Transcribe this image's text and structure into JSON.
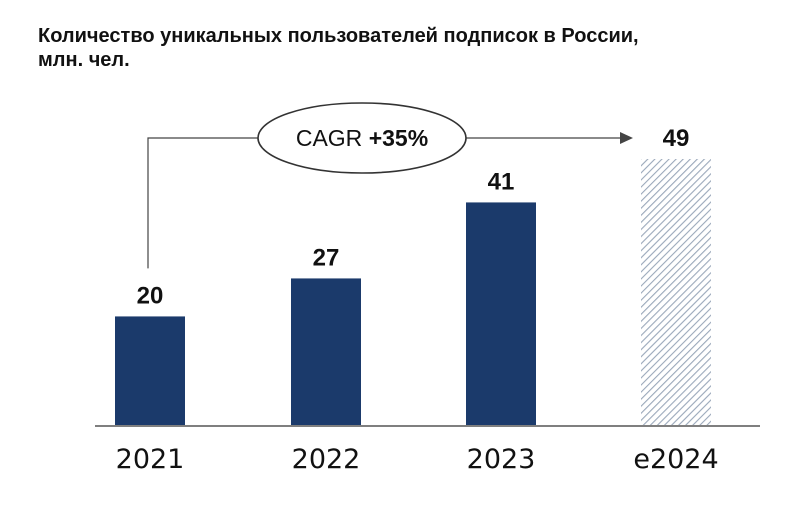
{
  "title": {
    "line1": "Количество уникальных пользователей подписок в России,",
    "line2": "млн. чел."
  },
  "annotation": {
    "prefix": "CAGR ",
    "value": "+35%"
  },
  "colors": {
    "bar": "#1b3a6b",
    "forecast_hatch": "#9aa8ba",
    "axis": "#555555",
    "text": "#111111"
  },
  "chart_data": {
    "type": "bar",
    "categories": [
      "2021",
      "2022",
      "2023",
      "e2024"
    ],
    "values": [
      20,
      27,
      41,
      49
    ],
    "data_labels": [
      "20",
      "27",
      "41",
      "49"
    ],
    "forecast": [
      false,
      false,
      false,
      true
    ],
    "title": "Количество уникальных пользователей подписок в России, млн. чел.",
    "xlabel": "",
    "ylabel": "",
    "ylim": [
      0,
      49
    ],
    "grid": false,
    "legend": "none",
    "annotations": [
      {
        "text": "CAGR +35%",
        "from": "2021",
        "to": "e2024"
      }
    ]
  }
}
